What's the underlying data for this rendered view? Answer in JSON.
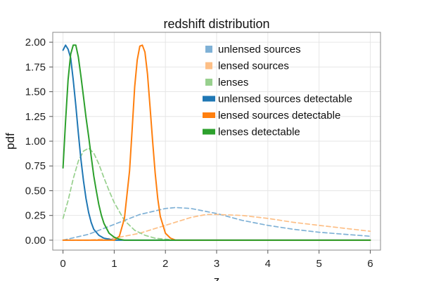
{
  "chart_data": {
    "type": "line",
    "title": "redshift distribution",
    "xlabel": "z",
    "ylabel": "pdf",
    "xlim": [
      -0.2,
      6.2
    ],
    "ylim": [
      -0.1,
      2.1
    ],
    "xticks": [
      "0",
      "1",
      "2",
      "3",
      "4",
      "5",
      "6"
    ],
    "yticks": [
      "0.00",
      "0.25",
      "0.50",
      "0.75",
      "1.00",
      "1.25",
      "1.50",
      "1.75",
      "2.00"
    ],
    "grid": true,
    "legend_position": "top-right",
    "series": [
      {
        "name": "unlensed sources",
        "style": "dashed",
        "color": "#7fb1d6",
        "x": [
          0,
          0.5,
          1.0,
          1.5,
          2.0,
          2.2,
          2.5,
          3.0,
          3.5,
          4.0,
          4.5,
          5.0,
          5.5,
          6.0
        ],
        "y": [
          0.0,
          0.06,
          0.16,
          0.26,
          0.32,
          0.33,
          0.32,
          0.27,
          0.2,
          0.15,
          0.11,
          0.08,
          0.06,
          0.04
        ]
      },
      {
        "name": "lensed sources",
        "style": "dashed",
        "color": "#fdbf86",
        "x": [
          0,
          0.5,
          1.0,
          1.5,
          2.0,
          2.5,
          2.8,
          3.0,
          3.5,
          4.0,
          4.5,
          5.0,
          5.5,
          6.0
        ],
        "y": [
          0.0,
          0.0,
          0.02,
          0.07,
          0.15,
          0.23,
          0.26,
          0.26,
          0.25,
          0.22,
          0.18,
          0.15,
          0.12,
          0.09
        ]
      },
      {
        "name": "lenses",
        "style": "dashed",
        "color": "#98d08e",
        "x": [
          0,
          0.1,
          0.2,
          0.3,
          0.4,
          0.5,
          0.6,
          0.7,
          0.8,
          0.9,
          1.0,
          1.2,
          1.4,
          1.6,
          1.8,
          2.0,
          2.2,
          2.5
        ],
        "y": [
          0.22,
          0.4,
          0.62,
          0.8,
          0.9,
          0.93,
          0.88,
          0.77,
          0.63,
          0.5,
          0.38,
          0.2,
          0.1,
          0.05,
          0.02,
          0.01,
          0.0,
          0.0
        ]
      },
      {
        "name": "unlensed sources detectable",
        "style": "solid",
        "color": "#1f77b4",
        "x": [
          0,
          0.05,
          0.1,
          0.15,
          0.2,
          0.25,
          0.3,
          0.35,
          0.4,
          0.45,
          0.5,
          0.55,
          0.6,
          0.7,
          0.8,
          0.9,
          1.0,
          1.2,
          6.0
        ],
        "y": [
          1.92,
          1.97,
          1.93,
          1.84,
          1.62,
          1.36,
          1.08,
          0.82,
          0.6,
          0.42,
          0.28,
          0.18,
          0.11,
          0.05,
          0.02,
          0.01,
          0.0,
          0.0,
          0.0
        ]
      },
      {
        "name": "lensed sources detectable",
        "style": "solid",
        "color": "#ff7f0e",
        "x": [
          0,
          1.0,
          1.1,
          1.2,
          1.3,
          1.35,
          1.4,
          1.45,
          1.5,
          1.55,
          1.6,
          1.65,
          1.7,
          1.75,
          1.8,
          1.85,
          1.9,
          2.0,
          2.1,
          2.2,
          6.0
        ],
        "y": [
          0.0,
          0.0,
          0.04,
          0.22,
          0.7,
          1.12,
          1.55,
          1.82,
          1.96,
          1.97,
          1.9,
          1.68,
          1.35,
          1.0,
          0.68,
          0.42,
          0.24,
          0.07,
          0.02,
          0.0,
          0.0
        ]
      },
      {
        "name": "lenses detectable",
        "style": "solid",
        "color": "#2ca02c",
        "x": [
          0,
          0.05,
          0.1,
          0.15,
          0.2,
          0.25,
          0.3,
          0.35,
          0.4,
          0.45,
          0.5,
          0.55,
          0.6,
          0.65,
          0.7,
          0.75,
          0.8,
          0.9,
          1.0,
          1.1,
          1.2,
          1.4,
          6.0
        ],
        "y": [
          0.73,
          1.2,
          1.62,
          1.88,
          1.97,
          1.97,
          1.85,
          1.66,
          1.45,
          1.24,
          1.05,
          0.85,
          0.65,
          0.5,
          0.36,
          0.25,
          0.17,
          0.07,
          0.03,
          0.01,
          0.0,
          0.0,
          0.0
        ]
      }
    ]
  }
}
